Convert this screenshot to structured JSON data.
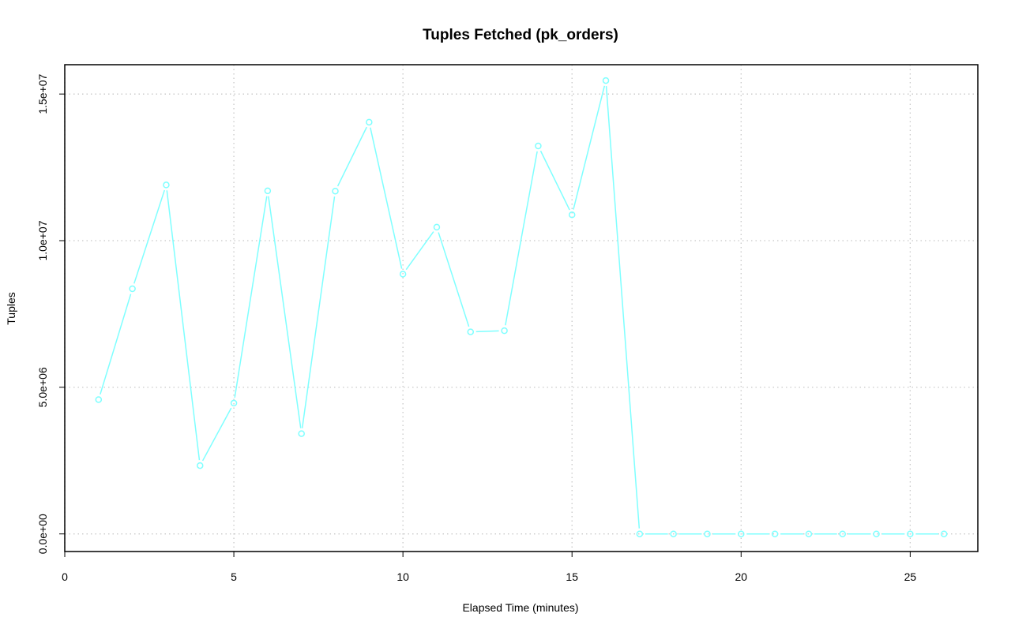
{
  "chart_data": {
    "type": "line",
    "title": "Tuples Fetched (pk_orders)",
    "xlabel": "Elapsed Time (minutes)",
    "ylabel": "Tuples",
    "xlim": [
      0,
      27
    ],
    "ylim": [
      -600000,
      16000000
    ],
    "xticks": [
      0,
      5,
      10,
      15,
      20,
      25
    ],
    "xtick_labels": [
      "0",
      "5",
      "10",
      "15",
      "20",
      "25"
    ],
    "yticks": [
      0,
      5000000,
      10000000,
      15000000
    ],
    "ytick_labels": [
      "0.0e+00",
      "5.0e+06",
      "1.0e+07",
      "1.5e+07"
    ],
    "grid": true,
    "color": "#7fffff",
    "marker": "open-circle",
    "series": [
      {
        "x": [
          1,
          2,
          3,
          4,
          5,
          6,
          7,
          8,
          9,
          10,
          11,
          12,
          13,
          14,
          15,
          16,
          17,
          18,
          19,
          20,
          21,
          22,
          23,
          24,
          25,
          26
        ],
        "values": [
          4580000,
          8360000,
          11900000,
          2330000,
          4460000,
          11700000,
          3420000,
          11690000,
          14040000,
          8860000,
          10460000,
          6890000,
          6930000,
          13230000,
          10880000,
          15460000,
          0,
          0,
          0,
          0,
          0,
          0,
          0,
          0,
          0,
          0
        ]
      }
    ]
  }
}
